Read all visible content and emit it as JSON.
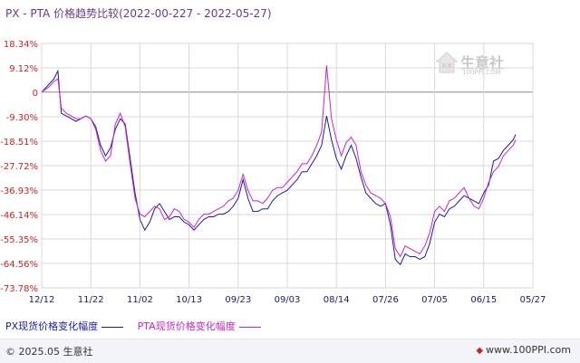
{
  "title": "PX - PTA 价格趋势比较(2022-00-227 - 2022-05-27)",
  "watermark": {
    "text": "生意社",
    "sub": "100PPI.COM"
  },
  "footer": {
    "left": "© 2025.05 生意社",
    "right": "www.100PPI.com"
  },
  "colors": {
    "px": "#1a1aa8",
    "pta": "#cc22cc",
    "axis_label": "#cc2222",
    "grid": "#d8d8d8"
  },
  "chart_data": {
    "type": "line",
    "title": "PX - PTA 价格趋势比较(2022-00-227 - 2022-05-27)",
    "xlabel": "",
    "ylabel": "",
    "y_ticks": [
      "18.34%",
      "9.12%",
      "0",
      "-9.30%",
      "-18.51%",
      "-27.72%",
      "-36.93%",
      "-46.14%",
      "-55.35%",
      "-64.56%",
      "-73.78%"
    ],
    "y_tick_values": [
      18.34,
      9.12,
      0,
      -9.3,
      -18.51,
      -27.72,
      -36.93,
      -46.14,
      -55.35,
      -64.56,
      -73.78
    ],
    "ylim": [
      -73.78,
      18.34
    ],
    "x_ticks": [
      "12/12",
      "11/22",
      "11/02",
      "10/13",
      "09/23",
      "09/03",
      "08/14",
      "07/26",
      "07/05",
      "06/15",
      "05/27"
    ],
    "x_range": [
      0,
      100
    ],
    "grid": true,
    "legend_position": "bottom-left",
    "series": [
      {
        "name": "PX现货价格变化幅度",
        "color": "#1a1aa8",
        "points": [
          [
            0,
            0
          ],
          [
            1.5,
            3
          ],
          [
            2.5,
            5
          ],
          [
            3.3,
            8
          ],
          [
            4,
            -8
          ],
          [
            5,
            -9
          ],
          [
            6,
            -10
          ],
          [
            7,
            -11
          ],
          [
            8,
            -10
          ],
          [
            9,
            -9
          ],
          [
            10,
            -10
          ],
          [
            11,
            -13
          ],
          [
            12,
            -20
          ],
          [
            13,
            -24
          ],
          [
            14,
            -21
          ],
          [
            15,
            -14
          ],
          [
            16,
            -10
          ],
          [
            17,
            -12
          ],
          [
            18,
            -25
          ],
          [
            19,
            -38
          ],
          [
            20,
            -48
          ],
          [
            21,
            -52
          ],
          [
            22,
            -49
          ],
          [
            23,
            -44
          ],
          [
            24,
            -42
          ],
          [
            25,
            -45
          ],
          [
            26,
            -48
          ],
          [
            27,
            -47
          ],
          [
            28,
            -47
          ],
          [
            29,
            -49
          ],
          [
            30,
            -50
          ],
          [
            31,
            -52
          ],
          [
            32,
            -50
          ],
          [
            33,
            -48
          ],
          [
            34,
            -47
          ],
          [
            35,
            -47
          ],
          [
            36,
            -46
          ],
          [
            37,
            -46
          ],
          [
            38,
            -45
          ],
          [
            39,
            -43
          ],
          [
            40,
            -40
          ],
          [
            41,
            -33
          ],
          [
            42,
            -40
          ],
          [
            43,
            -45
          ],
          [
            44,
            -45
          ],
          [
            45,
            -44
          ],
          [
            46,
            -44
          ],
          [
            47,
            -41
          ],
          [
            48,
            -39
          ],
          [
            49,
            -38
          ],
          [
            50,
            -37
          ],
          [
            51,
            -35
          ],
          [
            52,
            -33
          ],
          [
            53,
            -30
          ],
          [
            54,
            -30
          ],
          [
            55,
            -27
          ],
          [
            56,
            -24
          ],
          [
            57,
            -20
          ],
          [
            58,
            -9
          ],
          [
            59,
            -18
          ],
          [
            60,
            -25
          ],
          [
            61,
            -29
          ],
          [
            62,
            -24
          ],
          [
            63,
            -20
          ],
          [
            64,
            -25
          ],
          [
            65,
            -32
          ],
          [
            66,
            -38
          ],
          [
            67,
            -40
          ],
          [
            68,
            -42
          ],
          [
            69,
            -43
          ],
          [
            70,
            -42
          ],
          [
            71,
            -50
          ],
          [
            72,
            -63
          ],
          [
            73,
            -65
          ],
          [
            74,
            -61
          ],
          [
            75,
            -62
          ],
          [
            76,
            -62
          ],
          [
            77,
            -63
          ],
          [
            78,
            -62
          ],
          [
            79,
            -57
          ],
          [
            80,
            -49
          ],
          [
            81,
            -46
          ],
          [
            82,
            -47
          ],
          [
            83,
            -44
          ],
          [
            84,
            -43
          ],
          [
            85,
            -41
          ],
          [
            86,
            -39
          ],
          [
            87,
            -40
          ],
          [
            88,
            -41
          ],
          [
            89,
            -42
          ],
          [
            90,
            -38
          ],
          [
            91,
            -35
          ],
          [
            92,
            -26
          ],
          [
            93,
            -25
          ],
          [
            94,
            -22
          ],
          [
            95,
            -20
          ],
          [
            96,
            -18
          ],
          [
            96.5,
            -16
          ]
        ]
      },
      {
        "name": "PTA现货价格变化幅度",
        "color": "#cc22cc",
        "points": [
          [
            0,
            0
          ],
          [
            1.5,
            2
          ],
          [
            2.5,
            4
          ],
          [
            3.3,
            5
          ],
          [
            4,
            -6
          ],
          [
            5,
            -8
          ],
          [
            6,
            -9
          ],
          [
            7,
            -10
          ],
          [
            8,
            -10
          ],
          [
            9,
            -9
          ],
          [
            10,
            -10
          ],
          [
            11,
            -14
          ],
          [
            12,
            -22
          ],
          [
            13,
            -26
          ],
          [
            14,
            -24
          ],
          [
            15,
            -12
          ],
          [
            16,
            -8
          ],
          [
            17,
            -13
          ],
          [
            18,
            -27
          ],
          [
            19,
            -40
          ],
          [
            20,
            -46
          ],
          [
            21,
            -47
          ],
          [
            22,
            -45
          ],
          [
            23,
            -43
          ],
          [
            24,
            -44
          ],
          [
            25,
            -48
          ],
          [
            26,
            -47
          ],
          [
            27,
            -44
          ],
          [
            28,
            -45
          ],
          [
            29,
            -48
          ],
          [
            30,
            -49
          ],
          [
            31,
            -51
          ],
          [
            32,
            -48
          ],
          [
            33,
            -46
          ],
          [
            34,
            -46
          ],
          [
            35,
            -45
          ],
          [
            36,
            -44
          ],
          [
            37,
            -43
          ],
          [
            38,
            -41
          ],
          [
            39,
            -40
          ],
          [
            40,
            -37
          ],
          [
            41,
            -31
          ],
          [
            42,
            -37
          ],
          [
            43,
            -41
          ],
          [
            44,
            -41
          ],
          [
            45,
            -42
          ],
          [
            46,
            -40
          ],
          [
            47,
            -37
          ],
          [
            48,
            -36
          ],
          [
            49,
            -36
          ],
          [
            50,
            -34
          ],
          [
            51,
            -32
          ],
          [
            52,
            -30
          ],
          [
            53,
            -27
          ],
          [
            54,
            -27
          ],
          [
            55,
            -24
          ],
          [
            56,
            -20
          ],
          [
            57,
            -15
          ],
          [
            58,
            10
          ],
          [
            59,
            -10
          ],
          [
            60,
            -18
          ],
          [
            61,
            -24
          ],
          [
            62,
            -19
          ],
          [
            63,
            -17
          ],
          [
            64,
            -20
          ],
          [
            65,
            -30
          ],
          [
            66,
            -35
          ],
          [
            67,
            -38
          ],
          [
            68,
            -39
          ],
          [
            69,
            -40
          ],
          [
            70,
            -42
          ],
          [
            71,
            -47
          ],
          [
            72,
            -59
          ],
          [
            73,
            -62
          ],
          [
            74,
            -58
          ],
          [
            75,
            -59
          ],
          [
            76,
            -60
          ],
          [
            77,
            -61
          ],
          [
            78,
            -58
          ],
          [
            79,
            -53
          ],
          [
            80,
            -45
          ],
          [
            81,
            -43
          ],
          [
            82,
            -45
          ],
          [
            83,
            -41
          ],
          [
            84,
            -40
          ],
          [
            85,
            -38
          ],
          [
            86,
            -36
          ],
          [
            87,
            -40
          ],
          [
            88,
            -43
          ],
          [
            89,
            -44
          ],
          [
            90,
            -40
          ],
          [
            91,
            -34
          ],
          [
            92,
            -30
          ],
          [
            93,
            -28
          ],
          [
            94,
            -24
          ],
          [
            95,
            -22
          ],
          [
            96,
            -20
          ],
          [
            96.5,
            -18
          ]
        ]
      }
    ]
  }
}
